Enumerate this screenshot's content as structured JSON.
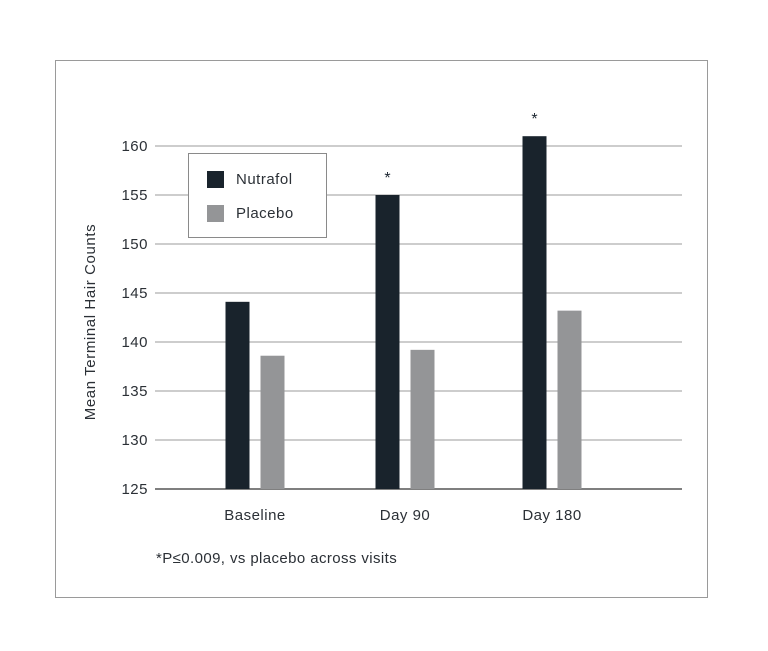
{
  "chart_data": {
    "type": "bar",
    "categories": [
      "Baseline",
      "Day 90",
      "Day 180"
    ],
    "series": [
      {
        "name": "Nutrafol",
        "values": [
          144.1,
          155.0,
          161.0
        ],
        "color": "#19232c"
      },
      {
        "name": "Placebo",
        "values": [
          138.6,
          139.2,
          143.2
        ],
        "color": "#949597"
      }
    ],
    "significance_markers": [
      "",
      "*",
      "*"
    ],
    "ylabel": "Mean Terminal Hair Counts",
    "xlabel": "",
    "ylim": [
      125,
      160
    ],
    "yticks": [
      "125",
      "130",
      "135",
      "140",
      "145",
      "150",
      "155",
      "160"
    ],
    "grid": true,
    "legend_position": "top-left",
    "footnote": "*P≤0.009, vs placebo across visits"
  }
}
